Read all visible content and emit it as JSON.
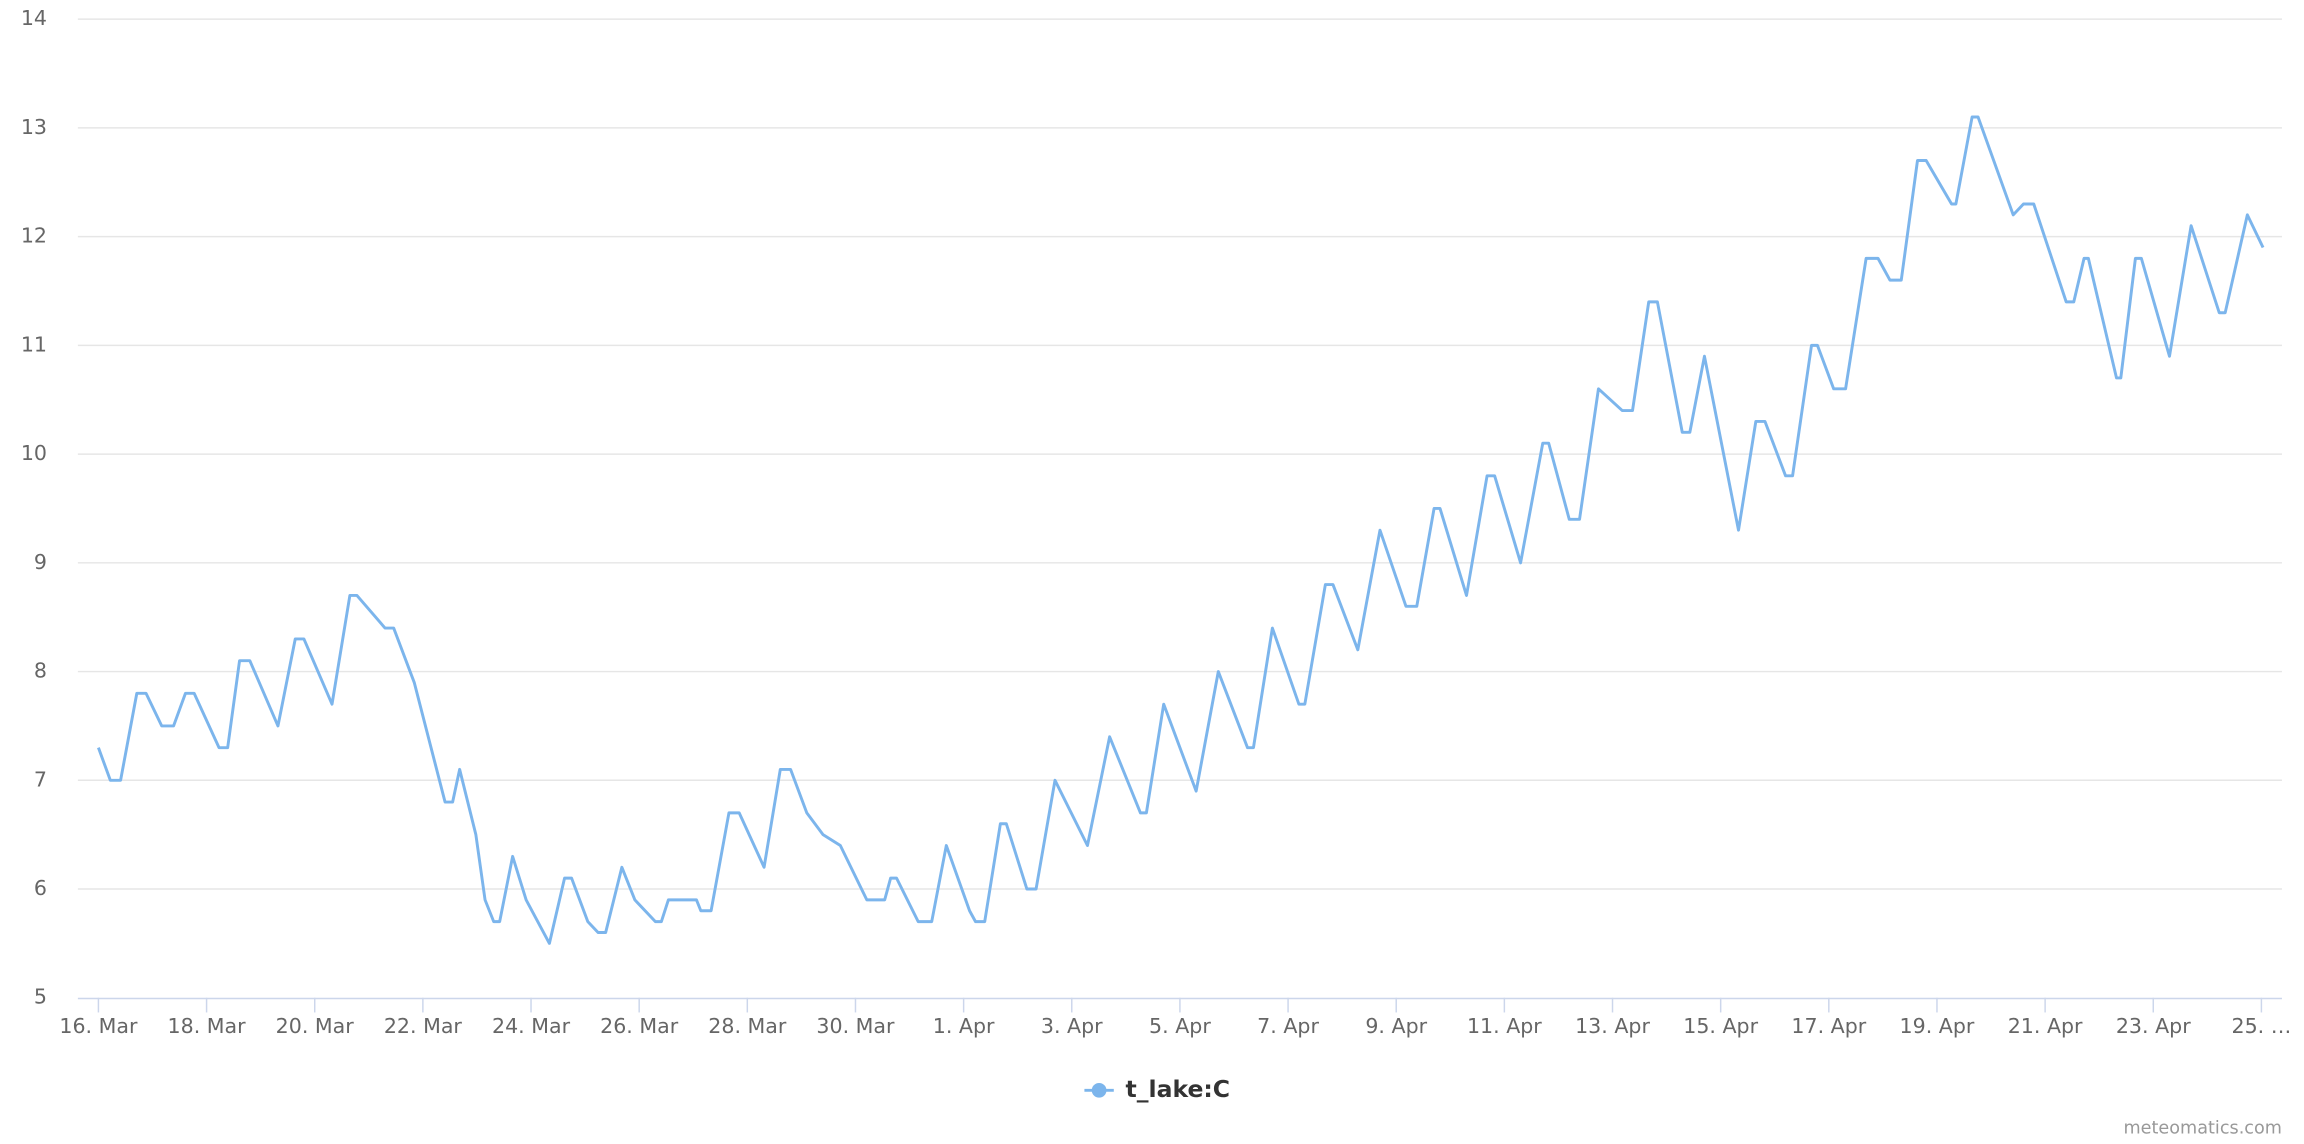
{
  "chart_data": {
    "type": "line",
    "x": [
      16.0,
      16.22,
      16.41,
      16.71,
      16.88,
      17.17,
      17.39,
      17.61,
      17.77,
      18.23,
      18.39,
      18.61,
      18.8,
      19.32,
      19.64,
      19.8,
      20.32,
      20.65,
      20.78,
      21.3,
      21.46,
      21.84,
      22.41,
      22.55,
      22.68,
      22.98,
      23.15,
      23.31,
      23.42,
      23.66,
      23.91,
      24.34,
      24.62,
      24.75,
      25.05,
      25.24,
      25.38,
      25.68,
      25.92,
      26.3,
      26.41,
      26.54,
      27.06,
      27.14,
      27.33,
      27.66,
      27.85,
      28.31,
      28.61,
      28.8,
      29.1,
      29.4,
      29.72,
      30.21,
      30.54,
      30.65,
      30.76,
      31.16,
      31.41,
      31.68,
      32.11,
      32.22,
      32.39,
      32.68,
      32.79,
      33.17,
      33.34,
      33.69,
      34.29,
      34.7,
      35.27,
      35.38,
      35.7,
      36.3,
      36.71,
      37.25,
      37.36,
      37.71,
      38.2,
      38.31,
      38.69,
      38.83,
      39.29,
      39.7,
      40.18,
      40.38,
      40.7,
      40.81,
      41.3,
      41.68,
      41.82,
      42.3,
      42.71,
      42.82,
      43.2,
      43.39,
      43.74,
      44.18,
      44.37,
      44.67,
      44.83,
      45.29,
      45.43,
      45.7,
      46.33,
      46.65,
      46.82,
      47.2,
      47.33,
      47.68,
      47.79,
      48.09,
      48.31,
      48.69,
      48.91,
      49.13,
      49.34,
      49.64,
      49.8,
      50.27,
      50.35,
      50.65,
      50.76,
      51.41,
      51.6,
      51.79,
      52.39,
      52.53,
      52.72,
      52.8,
      53.32,
      53.4,
      53.67,
      53.78,
      54.3,
      54.7,
      55.22,
      55.33,
      55.74,
      56.03
    ],
    "series": [
      {
        "name": "t_lake:C",
        "color": "#7cb5ec",
        "values": [
          7.3,
          7.0,
          7.0,
          7.8,
          7.8,
          7.5,
          7.5,
          7.8,
          7.8,
          7.3,
          7.3,
          8.1,
          8.1,
          7.5,
          8.3,
          8.3,
          7.7,
          8.7,
          8.7,
          8.4,
          8.4,
          7.9,
          6.8,
          6.8,
          7.1,
          6.5,
          5.9,
          5.7,
          5.7,
          6.3,
          5.9,
          5.5,
          6.1,
          6.1,
          5.7,
          5.6,
          5.6,
          6.2,
          5.9,
          5.7,
          5.7,
          5.9,
          5.9,
          5.8,
          5.8,
          6.7,
          6.7,
          6.2,
          7.1,
          7.1,
          6.7,
          6.5,
          6.4,
          5.9,
          5.9,
          6.1,
          6.1,
          5.7,
          5.7,
          6.4,
          5.8,
          5.7,
          5.7,
          6.6,
          6.6,
          6.0,
          6.0,
          7.0,
          6.4,
          7.4,
          6.7,
          6.7,
          7.7,
          6.9,
          8.0,
          7.3,
          7.3,
          8.4,
          7.7,
          7.7,
          8.8,
          8.8,
          8.2,
          9.3,
          8.6,
          8.6,
          9.5,
          9.5,
          8.7,
          9.8,
          9.8,
          9.0,
          10.1,
          10.1,
          9.4,
          9.4,
          10.6,
          10.4,
          10.4,
          11.4,
          11.4,
          10.2,
          10.2,
          10.9,
          9.3,
          10.3,
          10.3,
          9.8,
          9.8,
          11.0,
          11.0,
          10.6,
          10.6,
          11.8,
          11.8,
          11.6,
          11.6,
          12.7,
          12.7,
          12.3,
          12.3,
          13.1,
          13.1,
          12.2,
          12.3,
          12.3,
          11.4,
          11.4,
          11.8,
          11.8,
          10.7,
          10.7,
          11.8,
          11.8,
          10.9,
          12.1,
          11.3,
          11.3,
          12.2,
          11.9
        ]
      }
    ],
    "xlim": [
      15.62,
      56.38
    ],
    "xticks": [
      {
        "value": 16,
        "label": "16. Mar"
      },
      {
        "value": 18,
        "label": "18. Mar"
      },
      {
        "value": 20,
        "label": "20. Mar"
      },
      {
        "value": 22,
        "label": "22. Mar"
      },
      {
        "value": 24,
        "label": "24. Mar"
      },
      {
        "value": 26,
        "label": "26. Mar"
      },
      {
        "value": 28,
        "label": "28. Mar"
      },
      {
        "value": 30,
        "label": "30. Mar"
      },
      {
        "value": 32,
        "label": "1. Apr"
      },
      {
        "value": 34,
        "label": "3. Apr"
      },
      {
        "value": 36,
        "label": "5. Apr"
      },
      {
        "value": 38,
        "label": "7. Apr"
      },
      {
        "value": 40,
        "label": "9. Apr"
      },
      {
        "value": 42,
        "label": "11. Apr"
      },
      {
        "value": 44,
        "label": "13. Apr"
      },
      {
        "value": 46,
        "label": "15. Apr"
      },
      {
        "value": 48,
        "label": "17. Apr"
      },
      {
        "value": 50,
        "label": "19. Apr"
      },
      {
        "value": 52,
        "label": "21. Apr"
      },
      {
        "value": 54,
        "label": "23. Apr"
      },
      {
        "value": 56,
        "label": "25. …"
      }
    ],
    "ylim": [
      5,
      14
    ],
    "yticks": [
      5,
      6,
      7,
      8,
      9,
      10,
      11,
      12,
      13,
      14
    ],
    "grid": true,
    "legend": "bottom",
    "credits": "meteomatics.com"
  }
}
